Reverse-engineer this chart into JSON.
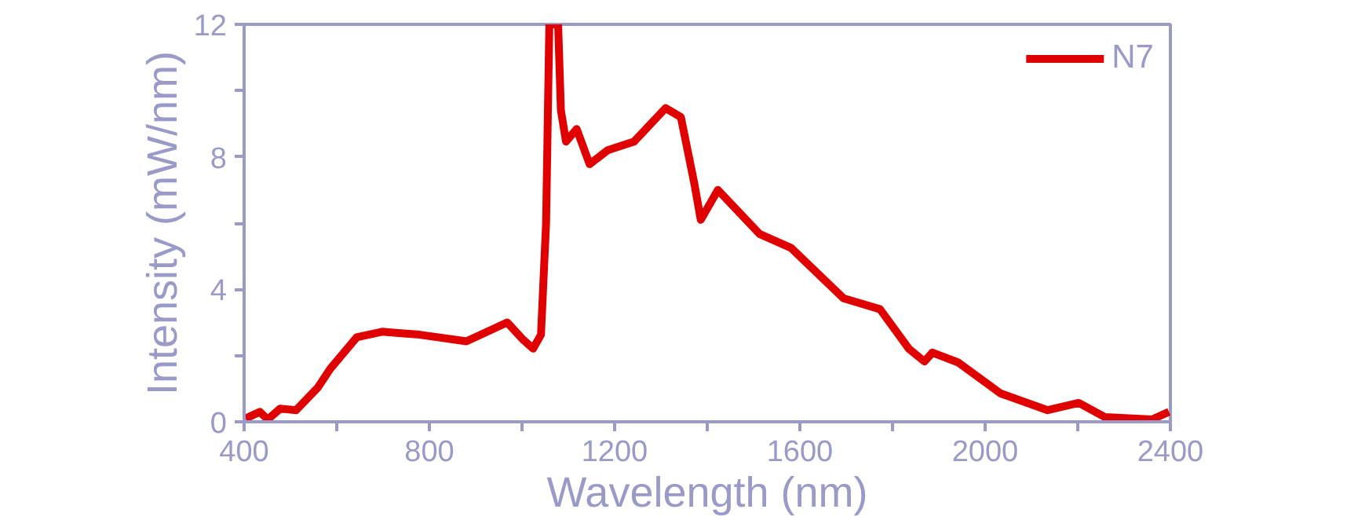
{
  "chart_data": {
    "type": "line",
    "xlabel": "Wavelength (nm)",
    "ylabel": "Intensity (mW/nm)",
    "xlim": [
      400,
      2400
    ],
    "xticks": [
      400,
      {
        "value": 600,
        "label": null
      },
      800,
      {
        "value": 1000,
        "label": null
      },
      1200,
      {
        "value": 1400,
        "label": null
      },
      1600,
      {
        "value": 1800,
        "label": null
      },
      2000,
      {
        "value": 2200,
        "label": null
      },
      2400
    ],
    "ylim": [
      0,
      12
    ],
    "yticks": [
      0,
      {
        "value": 2,
        "label": null
      },
      4,
      {
        "value": 6,
        "label": null
      },
      8,
      {
        "value": 10,
        "label": null
      },
      12
    ],
    "grid": false,
    "legend": "top right",
    "line_style": "solid",
    "series": [
      {
        "name": "N7",
        "color": "#e00000",
        "x": [
          403,
          434,
          451,
          478,
          512,
          559,
          586,
          643,
          698,
          779,
          880,
          925,
          968,
          1003,
          1024,
          1041,
          1052,
          1059,
          1078,
          1084,
          1095,
          1118,
          1146,
          1185,
          1242,
          1310,
          1343,
          1372,
          1386,
          1423,
          1513,
          1581,
          1694,
          1773,
          1835,
          1869,
          1886,
          1942,
          2033,
          2135,
          2202,
          2259,
          2360,
          2397
        ],
        "values": [
          0.1,
          0.3,
          0.07,
          0.4,
          0.35,
          1.03,
          1.6,
          2.55,
          2.72,
          2.63,
          2.43,
          2.72,
          3.0,
          2.47,
          2.21,
          2.63,
          6.0,
          12,
          12,
          9.4,
          8.46,
          8.84,
          7.78,
          8.2,
          8.46,
          9.47,
          9.2,
          7.2,
          6.1,
          7.0,
          5.67,
          5.25,
          3.73,
          3.4,
          2.21,
          1.82,
          2.09,
          1.79,
          0.86,
          0.35,
          0.57,
          0.14,
          0.07,
          0.3
        ]
      }
    ]
  }
}
